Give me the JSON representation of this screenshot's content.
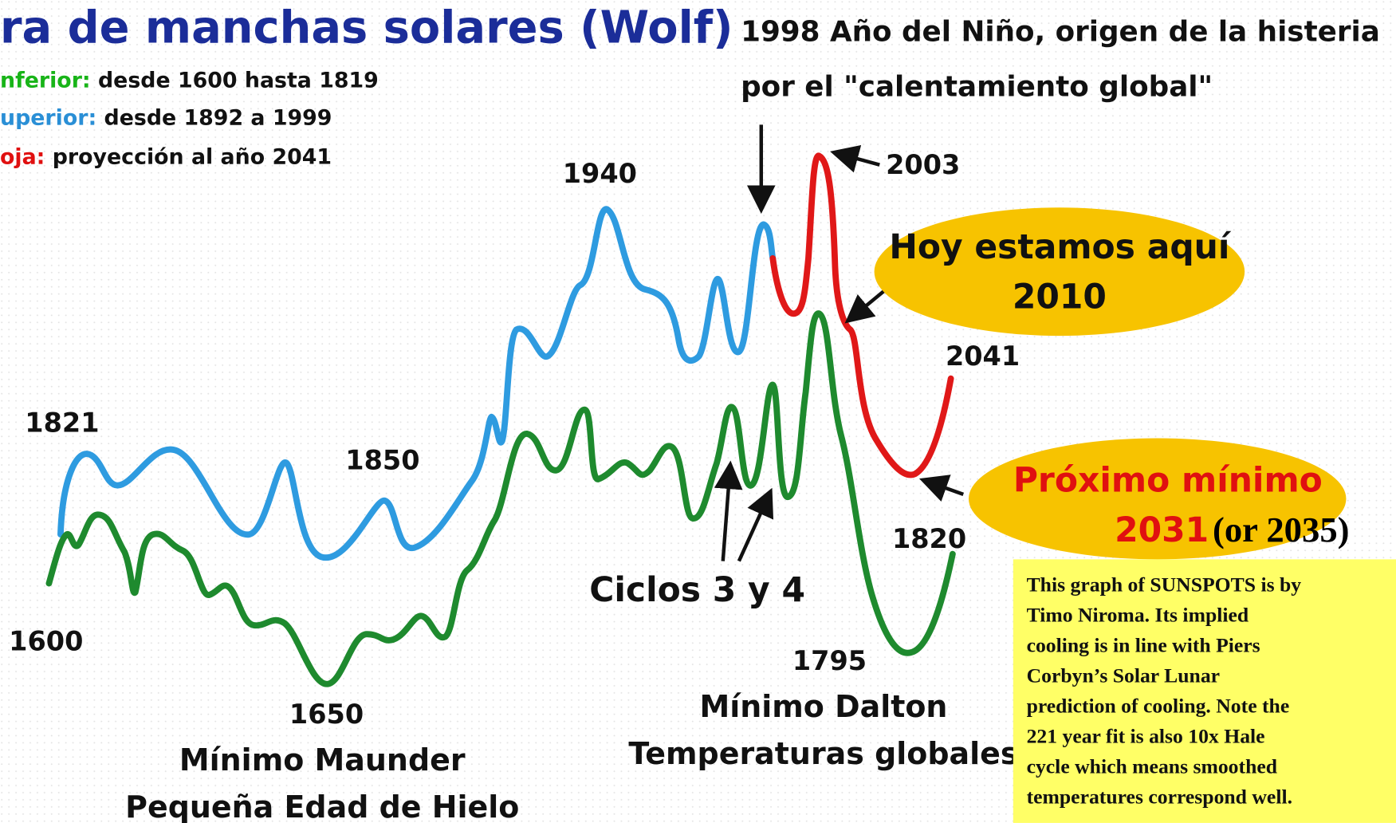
{
  "title": "ra de manchas solares (Wolf)",
  "legend": [
    {
      "label": "nferior:",
      "text": " desde 1600 hasta 1819"
    },
    {
      "label": "uperior:",
      "text": " desde 1892 a 1999"
    },
    {
      "label": "oja:",
      "text": " proyección al año 2041"
    }
  ],
  "nino": [
    "1998 Año del Niño, origen de la histeria",
    "por el \"calentamiento global\""
  ],
  "years": {
    "y1940": "1940",
    "y2003": "2003",
    "y2041": "2041",
    "y1821": "1821",
    "y1850": "1850",
    "y1820": "1820",
    "y1600": "1600",
    "y1650": "1650",
    "y1795": "1795"
  },
  "today": [
    "Hoy estamos aquí",
    "2010"
  ],
  "next_min": {
    "line1": "Próximo mínimo",
    "year": "2031",
    "alt": "(or 2035)"
  },
  "cycles": "Ciclos 3 y 4",
  "maunder": [
    "Mínimo Maunder",
    "Pequeña Edad de Hielo"
  ],
  "dalton": [
    "Mínimo Dalton",
    "Temperaturas globales"
  ],
  "note": [
    "This graph of SUNSPOTS is by",
    "Timo Niroma. Its implied",
    "cooling is in line with Piers",
    "Corbyn’s Solar Lunar",
    "prediction of cooling. Note the",
    "221 year fit is also 10x Hale",
    "cycle which means smoothed",
    "temperatures correspond well."
  ]
}
